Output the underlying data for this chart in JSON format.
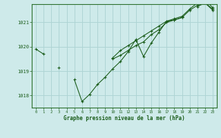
{
  "title": "Graphe pression niveau de la mer (hPa)",
  "background_color": "#ceeaea",
  "grid_color": "#aed4d4",
  "line_color": "#1a5c1a",
  "x_labels": [
    "0",
    "1",
    "2",
    "3",
    "4",
    "5",
    "6",
    "7",
    "8",
    "9",
    "10",
    "11",
    "12",
    "13",
    "14",
    "15",
    "16",
    "17",
    "18",
    "19",
    "20",
    "21",
    "22",
    "23"
  ],
  "ylim": [
    1017.5,
    1021.75
  ],
  "yticks": [
    1018,
    1019,
    1020,
    1021
  ],
  "series": [
    [
      1019.9,
      1019.7,
      null,
      1019.15,
      null,
      1018.65,
      1017.75,
      1018.05,
      1018.45,
      1018.75,
      1019.1,
      1019.4,
      1019.8,
      1020.3,
      1019.6,
      1020.15,
      1020.6,
      1021.05,
      1021.1,
      1021.2,
      null,
      1021.65,
      1021.8,
      1021.55
    ],
    [
      null,
      null,
      null,
      null,
      null,
      null,
      null,
      null,
      null,
      null,
      1019.5,
      1019.65,
      1019.85,
      1020.05,
      1020.2,
      1020.5,
      1020.7,
      1021.0,
      1021.1,
      1021.2,
      1021.5,
      1021.7,
      1021.8,
      1021.5
    ],
    [
      null,
      null,
      null,
      null,
      null,
      null,
      null,
      null,
      null,
      null,
      1019.55,
      1019.85,
      1020.05,
      1020.25,
      1020.45,
      1020.65,
      1020.85,
      1021.05,
      1021.15,
      1021.25,
      1021.55,
      1021.8,
      1021.95,
      1021.6
    ]
  ]
}
